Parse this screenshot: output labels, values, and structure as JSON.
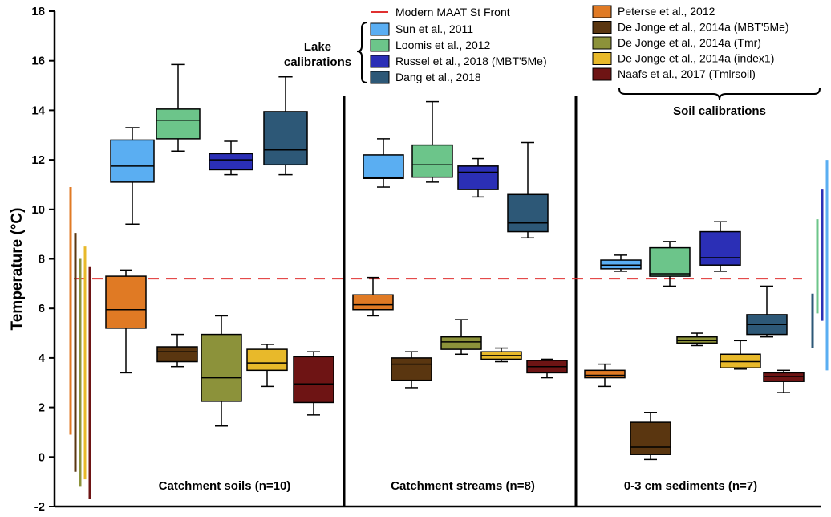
{
  "chart_data": {
    "type": "box",
    "ylabel": "Temperature (°C)",
    "ylim": [
      -2,
      18
    ],
    "yticks": [
      -2,
      0,
      2,
      4,
      6,
      8,
      10,
      12,
      14,
      16,
      18
    ],
    "reference_line": {
      "name": "Modern MAAT St Front",
      "value": 7.2,
      "color": "#e03030"
    },
    "group_labels": {
      "lake": "Lake calibrations",
      "soil": "Soil calibrations"
    },
    "series": [
      {
        "name": "Sun et al., 2011",
        "color": "#5aaef2",
        "group": "lake"
      },
      {
        "name": "Loomis et al., 2012",
        "color": "#6cc58a",
        "group": "lake"
      },
      {
        "name": "Russel et al., 2018 (MBT'5Me)",
        "color": "#2b2fb6",
        "group": "lake"
      },
      {
        "name": "Dang et al., 2018",
        "color": "#2d5877",
        "group": "lake"
      },
      {
        "name": "Peterse et al., 2012",
        "color": "#e07a24",
        "group": "soil"
      },
      {
        "name": "De Jonge et al., 2014a (MBT'5Me)",
        "color": "#5a3610",
        "group": "soil"
      },
      {
        "name": "De Jonge et al., 2014a (Tmr)",
        "color": "#8c923a",
        "group": "soil"
      },
      {
        "name": "De Jonge et al., 2014a (index1)",
        "color": "#e8b92a",
        "group": "soil"
      },
      {
        "name": "Naafs et al., 2017 (Tmlrsoil)",
        "color": "#6e1414",
        "group": "soil"
      }
    ],
    "panels": [
      {
        "label": "Catchment soils (n=10)",
        "boxes": [
          {
            "series": "Sun et al., 2011",
            "min": 9.4,
            "q1": 11.1,
            "median": 11.75,
            "q3": 12.8,
            "max": 13.3
          },
          {
            "series": "Loomis et al., 2012",
            "min": 12.35,
            "q1": 12.85,
            "median": 13.6,
            "q3": 14.05,
            "max": 15.85
          },
          {
            "series": "Russel et al., 2018 (MBT'5Me)",
            "min": 11.4,
            "q1": 11.6,
            "median": 12.0,
            "q3": 12.25,
            "max": 12.75
          },
          {
            "series": "Dang et al., 2018",
            "min": 11.4,
            "q1": 11.8,
            "median": 12.4,
            "q3": 13.95,
            "max": 15.35
          },
          {
            "series": "Peterse et al., 2012",
            "min": 3.4,
            "q1": 5.2,
            "median": 5.95,
            "q3": 7.3,
            "max": 7.55
          },
          {
            "series": "De Jonge et al., 2014a (MBT'5Me)",
            "min": 3.65,
            "q1": 3.85,
            "median": 4.25,
            "q3": 4.45,
            "max": 4.95
          },
          {
            "series": "De Jonge et al., 2014a (Tmr)",
            "min": 1.25,
            "q1": 2.25,
            "median": 3.2,
            "q3": 4.95,
            "max": 5.7
          },
          {
            "series": "De Jonge et al., 2014a (index1)",
            "min": 2.85,
            "q1": 3.5,
            "median": 3.8,
            "q3": 4.35,
            "max": 4.55
          },
          {
            "series": "Naafs et al., 2017 (Tmlrsoil)",
            "min": 1.7,
            "q1": 2.2,
            "median": 2.95,
            "q3": 4.05,
            "max": 4.25
          }
        ]
      },
      {
        "label": "Catchment streams (n=8)",
        "boxes": [
          {
            "series": "Sun et al., 2011",
            "min": 10.9,
            "q1": 11.25,
            "median": 11.3,
            "q3": 12.2,
            "max": 12.85
          },
          {
            "series": "Loomis et al., 2012",
            "min": 11.1,
            "q1": 11.3,
            "median": 11.8,
            "q3": 12.6,
            "max": 14.35
          },
          {
            "series": "Russel et al., 2018 (MBT'5Me)",
            "min": 10.5,
            "q1": 10.8,
            "median": 11.5,
            "q3": 11.75,
            "max": 12.05
          },
          {
            "series": "Dang et al., 2018",
            "min": 8.85,
            "q1": 9.1,
            "median": 9.45,
            "q3": 10.6,
            "max": 12.7
          },
          {
            "series": "Peterse et al., 2012",
            "min": 5.7,
            "q1": 5.95,
            "median": 6.15,
            "q3": 6.55,
            "max": 7.25
          },
          {
            "series": "De Jonge et al., 2014a (MBT'5Me)",
            "min": 2.8,
            "q1": 3.1,
            "median": 3.75,
            "q3": 4.0,
            "max": 4.25
          },
          {
            "series": "De Jonge et al., 2014a (Tmr)",
            "min": 4.15,
            "q1": 4.35,
            "median": 4.65,
            "q3": 4.85,
            "max": 5.55
          },
          {
            "series": "De Jonge et al., 2014a (index1)",
            "min": 3.85,
            "q1": 3.95,
            "median": 4.1,
            "q3": 4.25,
            "max": 4.4
          },
          {
            "series": "Naafs et al., 2017 (Tmlrsoil)",
            "min": 3.2,
            "q1": 3.4,
            "median": 3.65,
            "q3": 3.9,
            "max": 3.95
          }
        ]
      },
      {
        "label": "0-3 cm sediments (n=7)",
        "boxes": [
          {
            "series": "Sun et al., 2011",
            "min": 7.5,
            "q1": 7.6,
            "median": 7.75,
            "q3": 7.95,
            "max": 8.15
          },
          {
            "series": "Loomis et al., 2012",
            "min": 6.9,
            "q1": 7.3,
            "median": 7.4,
            "q3": 8.45,
            "max": 8.7
          },
          {
            "series": "Russel et al., 2018 (MBT'5Me)",
            "min": 7.5,
            "q1": 7.75,
            "median": 8.05,
            "q3": 9.1,
            "max": 9.5
          },
          {
            "series": "Dang et al., 2018",
            "min": 4.85,
            "q1": 4.95,
            "median": 5.35,
            "q3": 5.75,
            "max": 6.9
          },
          {
            "series": "Peterse et al., 2012",
            "min": 2.85,
            "q1": 3.2,
            "median": 3.3,
            "q3": 3.5,
            "max": 3.75
          },
          {
            "series": "De Jonge et al., 2014a (MBT'5Me)",
            "min": -0.1,
            "q1": 0.1,
            "median": 0.4,
            "q3": 1.4,
            "max": 1.8
          },
          {
            "series": "De Jonge et al., 2014a (Tmr)",
            "min": 4.5,
            "q1": 4.6,
            "median": 4.7,
            "q3": 4.85,
            "max": 5.0
          },
          {
            "series": "De Jonge et al., 2014a (index1)",
            "min": 3.55,
            "q1": 3.6,
            "median": 3.85,
            "q3": 4.15,
            "max": 4.7
          },
          {
            "series": "Naafs et al., 2017 (Tmlrsoil)",
            "min": 2.6,
            "q1": 3.05,
            "median": 3.25,
            "q3": 3.4,
            "max": 3.5
          }
        ]
      }
    ],
    "range_bars": {
      "left": [
        {
          "series": "Peterse et al., 2012",
          "min": 0.9,
          "max": 10.9
        },
        {
          "series": "De Jonge et al., 2014a (MBT'5Me)",
          "min": -0.6,
          "max": 9.05
        },
        {
          "series": "De Jonge et al., 2014a (Tmr)",
          "min": -1.2,
          "max": 8.0
        },
        {
          "series": "De Jonge et al., 2014a (index1)",
          "min": -0.9,
          "max": 8.5
        },
        {
          "series": "Naafs et al., 2017 (Tmlrsoil)",
          "min": -1.7,
          "max": 7.7
        }
      ],
      "right": [
        {
          "series": "Dang et al., 2018",
          "min": 4.4,
          "max": 6.6
        },
        {
          "series": "Loomis et al., 2012",
          "min": 5.8,
          "max": 9.6
        },
        {
          "series": "Russel et al., 2018 (MBT'5Me)",
          "min": 5.5,
          "max": 10.8
        },
        {
          "series": "Sun et al., 2011",
          "min": 3.5,
          "max": 12.0
        }
      ]
    }
  }
}
